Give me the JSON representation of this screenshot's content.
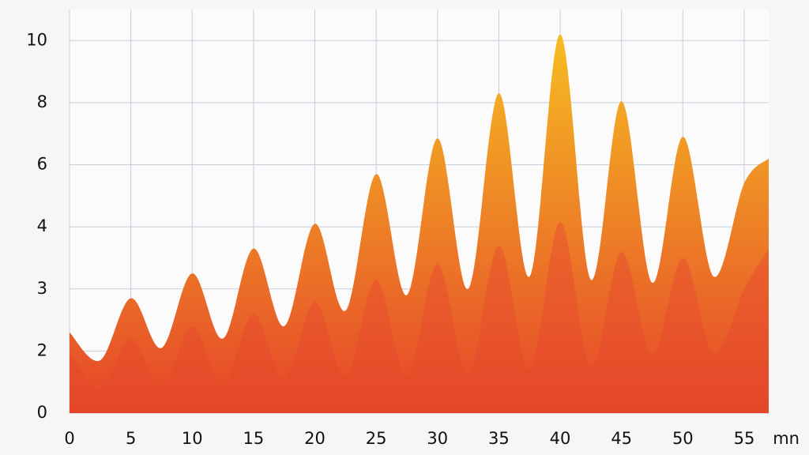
{
  "chart_data": {
    "type": "area",
    "x_label": "mn",
    "x": [
      0,
      2.5,
      5,
      7.5,
      10,
      12.5,
      15,
      17.5,
      20,
      22.5,
      25,
      27.5,
      30,
      32.5,
      35,
      37.5,
      40,
      42.5,
      45,
      47.5,
      50,
      52.5,
      55,
      57
    ],
    "series": [
      {
        "color": "#f6bd22",
        "values": [
          2.3,
          1.7,
          2.85,
          2.05,
          3.25,
          2.2,
          3.65,
          2.4,
          4.1,
          2.65,
          5.7,
          2.9,
          6.85,
          3.0,
          8.3,
          3.2,
          10.2,
          3.15,
          8.05,
          3.1,
          6.9,
          3.2,
          5.4,
          6.2
        ]
      },
      {
        "color": "#f08a2e",
        "values": [
          2.0,
          0.75,
          2.2,
          0.85,
          2.4,
          0.9,
          2.6,
          1.1,
          2.8,
          1.2,
          3.15,
          1.2,
          3.4,
          1.25,
          3.7,
          1.4,
          4.15,
          1.5,
          3.6,
          1.9,
          3.5,
          1.9,
          3.0,
          3.65
        ]
      }
    ],
    "xlim": [
      0,
      57
    ],
    "xticks": [
      0,
      5,
      10,
      15,
      20,
      25,
      30,
      35,
      40,
      45,
      50,
      55
    ],
    "ylim": [
      0,
      11
    ],
    "yticks": [
      0,
      2,
      3,
      4,
      6,
      8,
      10
    ],
    "grid": true
  }
}
